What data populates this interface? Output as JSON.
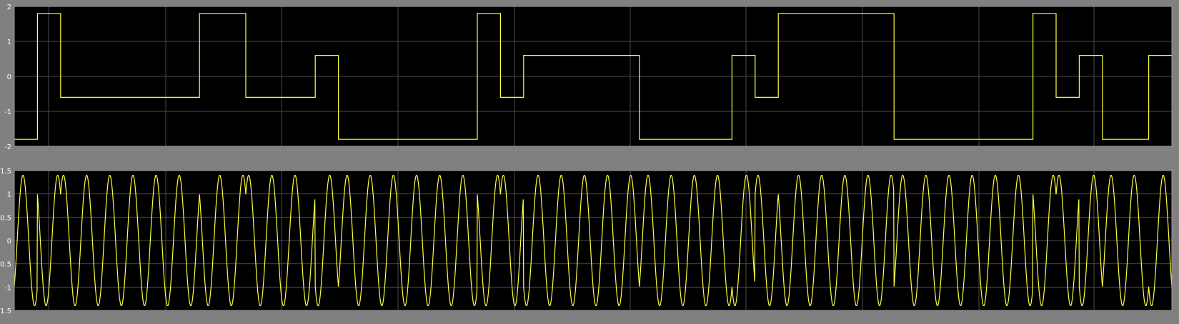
{
  "colors": {
    "figure_background": "#808080",
    "axes_background": "#000000",
    "grid": "#4a4a4a",
    "trace": "#ffff3c",
    "tick_label": "#ffffff"
  },
  "chart_data": [
    {
      "type": "line",
      "step": true,
      "grid": true,
      "ylim": [
        -2,
        2
      ],
      "yticks": [
        "2",
        "1",
        "0",
        "-1",
        "-2"
      ],
      "ytick_values": [
        2,
        1,
        0,
        -1,
        -2
      ],
      "xlim": [
        0,
        50
      ],
      "series": [
        {
          "levels": [
            -1.8,
            1.8,
            -0.6,
            -0.6,
            -0.6,
            -0.6,
            -0.6,
            -0.6,
            1.8,
            1.8,
            -0.6,
            -0.6,
            -0.6,
            0.6,
            -1.8,
            -1.8,
            -1.8,
            -1.8,
            -1.8,
            -1.8,
            1.8,
            -0.6,
            0.6,
            0.6,
            0.6,
            0.6,
            0.6,
            -1.8,
            -1.8,
            -1.8,
            -1.8,
            0.6,
            -0.6,
            1.8,
            1.8,
            1.8,
            1.8,
            1.8,
            -1.8,
            -1.8,
            -1.8,
            -1.8,
            -1.8,
            -1.8,
            1.8,
            -0.6,
            0.6,
            -1.8,
            -1.8,
            0.6
          ]
        }
      ]
    },
    {
      "type": "line",
      "grid": true,
      "ylim": [
        -1.5,
        1.5
      ],
      "yticks": [
        "1.5",
        "1",
        "0.5",
        "0",
        "-0.5",
        "-1",
        "-1.5"
      ],
      "ytick_values": [
        1.5,
        1,
        0.5,
        0,
        -0.5,
        -1,
        -1.5
      ],
      "xlim": [
        0,
        50
      ],
      "series": [
        {
          "amplitude": 1.4,
          "cycles_per_symbol": 1,
          "phases_deg": [
            225,
            45,
            315,
            315,
            315,
            315,
            315,
            315,
            45,
            45,
            315,
            315,
            315,
            135,
            225,
            225,
            225,
            225,
            225,
            225,
            45,
            315,
            135,
            135,
            135,
            135,
            135,
            225,
            225,
            225,
            225,
            135,
            315,
            45,
            45,
            45,
            45,
            45,
            225,
            225,
            225,
            225,
            225,
            225,
            45,
            315,
            135,
            225,
            225,
            135
          ]
        }
      ]
    }
  ]
}
